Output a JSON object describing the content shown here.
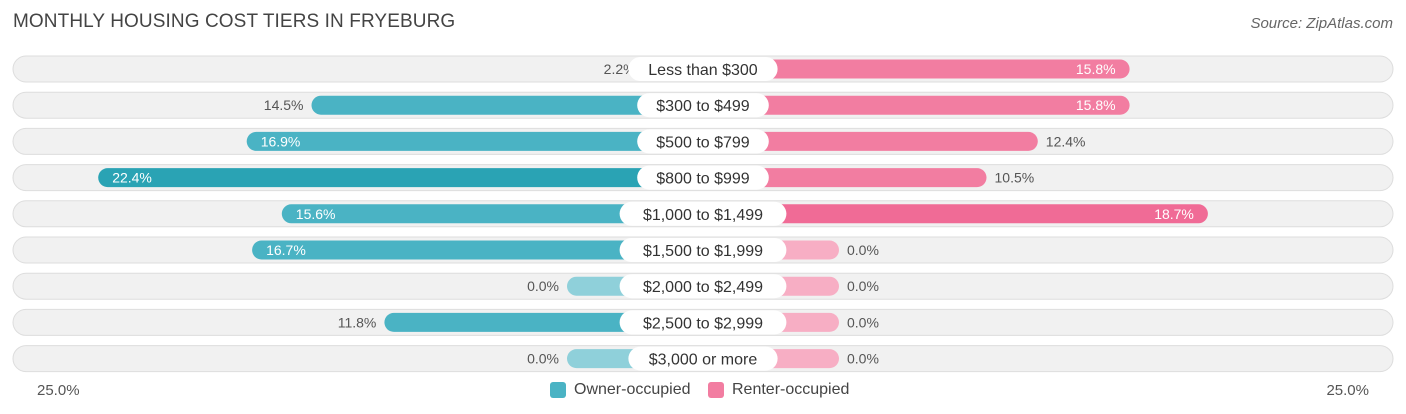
{
  "title": "MONTHLY HOUSING COST TIERS IN FRYEBURG",
  "source": "Source: ZipAtlas.com",
  "colors": {
    "owner": "#4ab3c4",
    "owner_strong": "#2aa3b4",
    "owner_light": "#8fd0da",
    "renter": "#f27da1",
    "renter_strong": "#f06b96",
    "renter_light": "#f7aec4",
    "row_bg": "#f1f1f1",
    "row_border": "#dddddd"
  },
  "legend": {
    "owner_label": "Owner-occupied",
    "renter_label": "Renter-occupied"
  },
  "axis": {
    "left_label": "25.0%",
    "right_label": "25.0%"
  },
  "chart_data": {
    "type": "bar",
    "orientation": "horizontal-diverging",
    "title": "MONTHLY HOUSING COST TIERS IN FRYEBURG",
    "xlim": [
      -25,
      25
    ],
    "categories": [
      "Less than $300",
      "$300 to $499",
      "$500 to $799",
      "$800 to $999",
      "$1,000 to $1,499",
      "$1,500 to $1,999",
      "$2,000 to $2,499",
      "$2,500 to $2,999",
      "$3,000 or more"
    ],
    "series": [
      {
        "name": "Owner-occupied",
        "values": [
          2.2,
          14.5,
          16.9,
          22.4,
          15.6,
          16.7,
          0.0,
          11.8,
          0.0
        ],
        "labels": [
          "2.2%",
          "14.5%",
          "16.9%",
          "22.4%",
          "15.6%",
          "16.7%",
          "0.0%",
          "11.8%",
          "0.0%"
        ]
      },
      {
        "name": "Renter-occupied",
        "values": [
          15.8,
          15.8,
          12.4,
          10.5,
          18.7,
          0.0,
          0.0,
          0.0,
          0.0
        ],
        "labels": [
          "15.8%",
          "15.8%",
          "12.4%",
          "10.5%",
          "18.7%",
          "0.0%",
          "0.0%",
          "0.0%",
          "0.0%"
        ]
      }
    ],
    "legend_position": "bottom-center"
  }
}
